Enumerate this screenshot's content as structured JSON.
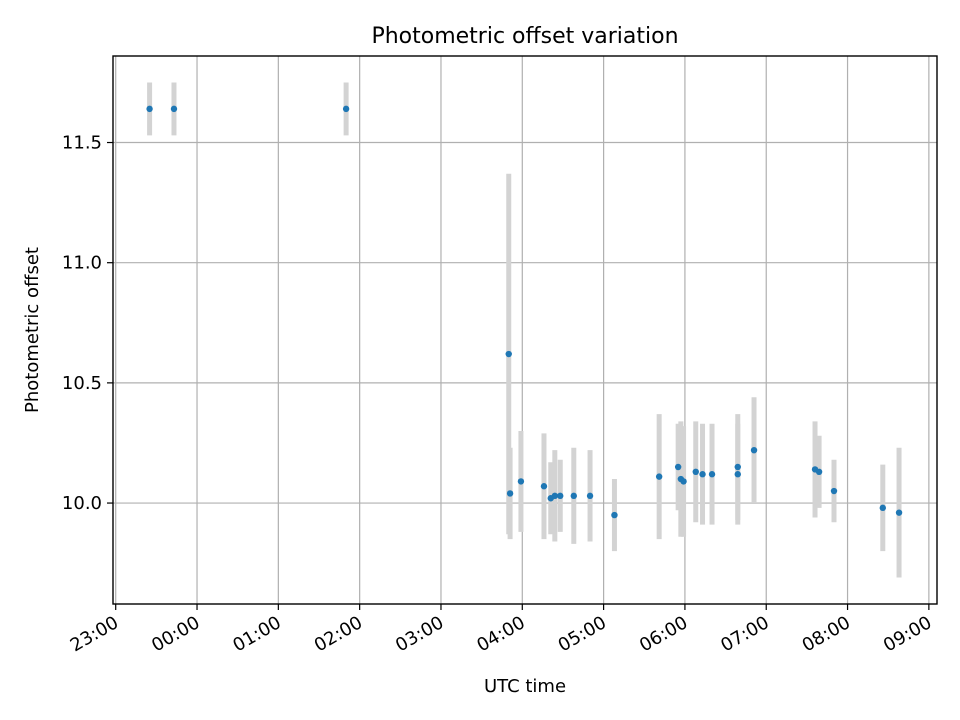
{
  "chart_data": {
    "type": "scatter",
    "title": "Photometric offset variation",
    "xlabel": "UTC time",
    "ylabel": "Photometric offset",
    "x_unit": "time (HH:MM UTC)",
    "xlim": [
      "22:58",
      "09:06"
    ],
    "ylim": [
      9.58,
      11.86
    ],
    "x_ticks": [
      "23:00",
      "00:00",
      "01:00",
      "02:00",
      "03:00",
      "04:00",
      "05:00",
      "06:00",
      "07:00",
      "08:00",
      "09:00"
    ],
    "y_ticks": [
      "10.0",
      "10.5",
      "11.0",
      "11.5"
    ],
    "grid": true,
    "x_tick_rotation_deg": 30,
    "colors": {
      "point": "#1f77b4",
      "errorbar": "#d3d3d3",
      "grid": "#b0b0b0"
    },
    "points": [
      {
        "x": "23:25",
        "y": 11.64,
        "err": 0.11
      },
      {
        "x": "23:43",
        "y": 11.64,
        "err": 0.11
      },
      {
        "x": "01:50",
        "y": 11.64,
        "err": 0.11
      },
      {
        "x": "03:50",
        "y": 10.62,
        "err": 0.75
      },
      {
        "x": "03:51",
        "y": 10.04,
        "err": 0.19
      },
      {
        "x": "03:59",
        "y": 10.09,
        "err": 0.21
      },
      {
        "x": "04:16",
        "y": 10.07,
        "err": 0.22
      },
      {
        "x": "04:21",
        "y": 10.02,
        "err": 0.15
      },
      {
        "x": "04:24",
        "y": 10.03,
        "err": 0.19
      },
      {
        "x": "04:28",
        "y": 10.03,
        "err": 0.15
      },
      {
        "x": "04:38",
        "y": 10.03,
        "err": 0.2
      },
      {
        "x": "04:50",
        "y": 10.03,
        "err": 0.19
      },
      {
        "x": "05:08",
        "y": 9.95,
        "err": 0.15
      },
      {
        "x": "05:41",
        "y": 10.11,
        "err": 0.26
      },
      {
        "x": "05:55",
        "y": 10.15,
        "err": 0.18
      },
      {
        "x": "05:57",
        "y": 10.1,
        "err": 0.24
      },
      {
        "x": "05:59",
        "y": 10.09,
        "err": 0.23
      },
      {
        "x": "06:08",
        "y": 10.13,
        "err": 0.21
      },
      {
        "x": "06:13",
        "y": 10.12,
        "err": 0.21
      },
      {
        "x": "06:20",
        "y": 10.12,
        "err": 0.21
      },
      {
        "x": "06:39",
        "y": 10.12,
        "err": 0.21
      },
      {
        "x": "06:39",
        "y": 10.15,
        "err": 0.22
      },
      {
        "x": "06:51",
        "y": 10.22,
        "err": 0.22
      },
      {
        "x": "07:36",
        "y": 10.14,
        "err": 0.2
      },
      {
        "x": "07:39",
        "y": 10.13,
        "err": 0.15
      },
      {
        "x": "07:50",
        "y": 10.05,
        "err": 0.13
      },
      {
        "x": "08:26",
        "y": 9.98,
        "err": 0.18
      },
      {
        "x": "08:38",
        "y": 9.96,
        "err": 0.27
      }
    ]
  }
}
